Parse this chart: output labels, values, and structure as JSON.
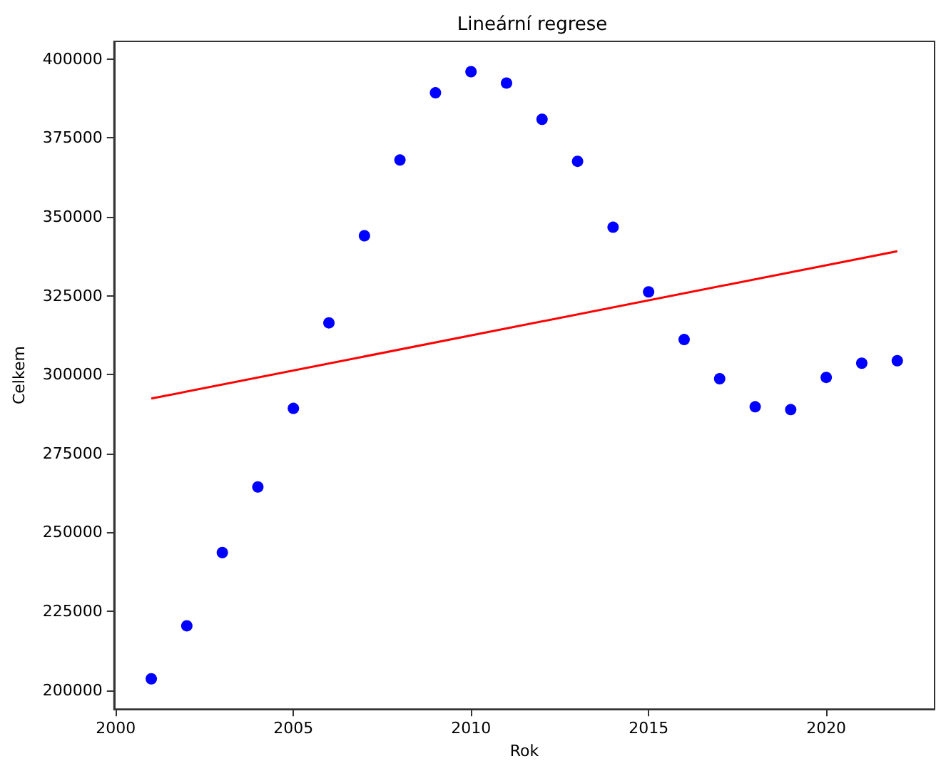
{
  "chart_data": {
    "type": "scatter",
    "title": "Lineární regrese",
    "xlabel": "Rok",
    "ylabel": "Celkem",
    "xlim": [
      1999.95,
      2023.05
    ],
    "xticks": [
      2000,
      2005,
      2010,
      2015,
      2020
    ],
    "ylim": [
      194000,
      405600
    ],
    "yticks": [
      200000,
      225000,
      250000,
      275000,
      300000,
      325000,
      350000,
      375000,
      400000
    ],
    "grid": false,
    "series": [
      {
        "marker": "circle",
        "color": "#0000ff",
        "x": [
          2001,
          2002,
          2003,
          2004,
          2005,
          2006,
          2007,
          2008,
          2009,
          2010,
          2011,
          2012,
          2013,
          2014,
          2015,
          2016,
          2017,
          2018,
          2019,
          2020,
          2021,
          2022
        ],
        "values": [
          203600,
          220400,
          243600,
          264400,
          289300,
          316400,
          344000,
          368000,
          389300,
          396000,
          392400,
          380900,
          367600,
          346700,
          326200,
          311100,
          298700,
          289800,
          288900,
          299100,
          303600,
          304400
        ]
      },
      {
        "type": "line",
        "color": "#ff0000",
        "x": [
          2001,
          2022
        ],
        "values": [
          292400,
          339100
        ]
      }
    ]
  }
}
